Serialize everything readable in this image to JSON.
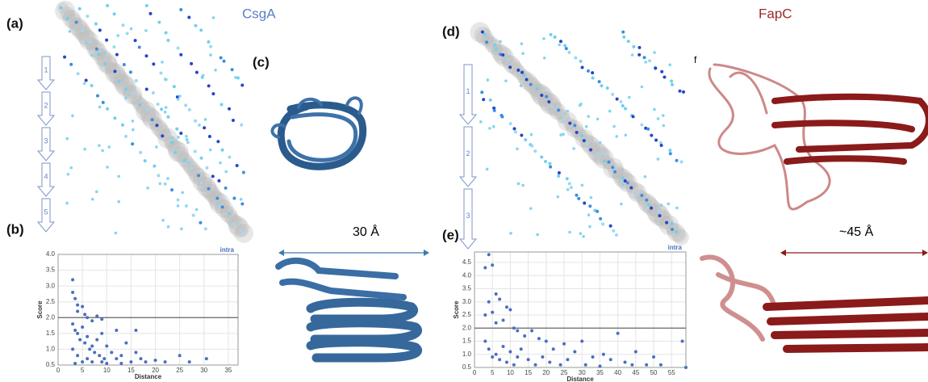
{
  "panels": {
    "a": "(a)",
    "b": "(b)",
    "c": "(c)",
    "d": "(d)",
    "e": "(e)",
    "f": "f"
  },
  "titles": {
    "csga": "CsgA",
    "fapc": "FapC"
  },
  "dimensions": {
    "csga": "30 Å",
    "fapc": "~45 Å"
  },
  "csga_segments": [
    "1",
    "2",
    "3",
    "4",
    "5"
  ],
  "fapc_segments": [
    "1",
    "2",
    "3"
  ],
  "chart_data": [
    {
      "type": "scatter",
      "series": [
        {
          "name": "intra",
          "color": "#4a6fbf",
          "x": [
            3,
            3,
            3.5,
            4,
            4,
            5,
            5.5,
            6,
            7,
            8,
            9,
            3,
            3.5,
            4,
            4.5,
            5,
            5.5,
            6,
            6.5,
            7,
            7.5,
            8,
            8.5,
            9,
            9.5,
            10,
            11,
            12,
            12,
            13,
            14,
            15,
            16,
            16,
            17,
            18,
            20,
            22,
            25,
            27,
            30.5,
            3,
            4,
            5,
            6,
            3.5,
            7,
            9,
            10,
            13
          ],
          "values": [
            3.2,
            2.8,
            2.6,
            2.4,
            2.2,
            2.35,
            2.1,
            2.0,
            1.9,
            2.05,
            1.95,
            1.8,
            1.6,
            1.5,
            1.3,
            1.7,
            1.2,
            1.4,
            1.0,
            1.1,
            0.9,
            1.3,
            0.8,
            1.5,
            0.7,
            1.1,
            0.9,
            1.6,
            0.7,
            0.8,
            1.2,
            0.6,
            1.6,
            0.9,
            0.7,
            0.6,
            0.65,
            0.6,
            0.8,
            0.6,
            0.7,
            1.0,
            0.8,
            0.6,
            0.7,
            0.55,
            0.6,
            0.6,
            0.55,
            0.55
          ]
        }
      ],
      "x_label": "Distance",
      "y_label": "Score",
      "threshold": 2.0,
      "xlim": [
        0,
        37
      ],
      "xticks": [
        0,
        5,
        10,
        15,
        20,
        25,
        30,
        35
      ],
      "ylim": [
        0.5,
        4.0
      ],
      "yticks": [
        0.5,
        {
          "value": 1,
          "label": "1.0"
        },
        1.5,
        {
          "value": 2,
          "label": "2.0"
        },
        2.5,
        {
          "value": 3,
          "label": "3.0"
        },
        3.5,
        {
          "value": 4,
          "label": "4.0"
        }
      ]
    },
    {
      "type": "scatter",
      "series": [
        {
          "name": "intra",
          "color": "#4a6fbf",
          "x": [
            4,
            5,
            3,
            6,
            7,
            4,
            9,
            10,
            5,
            3,
            8,
            6,
            11,
            12,
            14,
            16,
            18,
            20,
            22,
            25,
            28,
            30,
            33,
            36,
            38,
            40,
            42,
            45,
            48,
            50,
            52,
            58,
            59,
            3,
            4,
            5,
            6,
            7,
            8,
            9,
            10,
            11,
            12,
            13,
            15,
            17,
            19,
            21,
            24,
            26,
            31,
            35,
            44
          ],
          "values": [
            4.8,
            4.4,
            4.3,
            3.3,
            3.1,
            3.0,
            2.8,
            2.7,
            2.6,
            2.5,
            2.3,
            2.2,
            2.0,
            1.9,
            1.7,
            1.9,
            1.6,
            1.5,
            1.2,
            1.4,
            1.1,
            1.5,
            0.9,
            1.0,
            0.8,
            1.8,
            0.7,
            1.1,
            0.6,
            0.9,
            0.6,
            1.5,
            0.5,
            1.5,
            1.2,
            0.9,
            1.0,
            0.8,
            1.3,
            0.7,
            1.1,
            0.6,
            0.9,
            1.2,
            0.8,
            0.6,
            0.9,
            0.7,
            0.6,
            0.8,
            0.6,
            0.55,
            0.6
          ]
        }
      ],
      "x_label": "Distance",
      "y_label": "Score",
      "threshold": 2.0,
      "xlim": [
        0,
        59
      ],
      "xticks": [
        0,
        5,
        10,
        15,
        20,
        25,
        30,
        35,
        40,
        45,
        50,
        55
      ],
      "ylim": [
        0.5,
        4.9
      ],
      "yticks": [
        0.5,
        {
          "value": 1,
          "label": "1.0"
        },
        1.5,
        {
          "value": 2,
          "label": "2.0"
        },
        2.5,
        {
          "value": 3,
          "label": "3.0"
        },
        3.5,
        {
          "value": 4,
          "label": "4.0"
        },
        4.5
      ]
    }
  ]
}
